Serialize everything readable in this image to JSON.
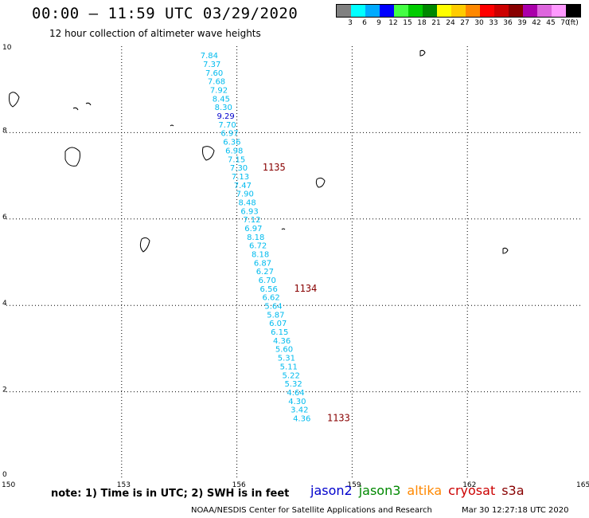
{
  "header": {
    "title": "00:00 – 11:59 UTC 03/29/2020",
    "subtitle": "12 hour collection of altimeter wave heights"
  },
  "legend": {
    "unit": "(ft)",
    "bins": [
      {
        "label": "3",
        "color": "#808080"
      },
      {
        "label": "6",
        "color": "#00ffff"
      },
      {
        "label": "9",
        "color": "#00aaff"
      },
      {
        "label": "12",
        "color": "#0000ff"
      },
      {
        "label": "15",
        "color": "#44ff44"
      },
      {
        "label": "18",
        "color": "#00cc00"
      },
      {
        "label": "21",
        "color": "#008800"
      },
      {
        "label": "24",
        "color": "#ffff00"
      },
      {
        "label": "27",
        "color": "#ffcc00"
      },
      {
        "label": "30",
        "color": "#ff8800"
      },
      {
        "label": "33",
        "color": "#ff0000"
      },
      {
        "label": "36",
        "color": "#cc0000"
      },
      {
        "label": "39",
        "color": "#880000"
      },
      {
        "label": "42",
        "color": "#aa00aa"
      },
      {
        "label": "45",
        "color": "#dd66dd"
      },
      {
        "label": "70",
        "color": "#ff99ff"
      },
      {
        "label": "",
        "color": "#000000"
      }
    ]
  },
  "map": {
    "x_ticks": [
      "150",
      "153",
      "156",
      "159",
      "162",
      "165"
    ],
    "y_ticks": [
      "10",
      "8",
      "6",
      "4",
      "2",
      "0"
    ],
    "x_values": [
      150,
      153,
      156,
      159,
      162,
      165
    ],
    "y_values": [
      10,
      8,
      6,
      4,
      2,
      0
    ]
  },
  "track": {
    "line_color": "#00bbee",
    "dark_color": "#0000cc",
    "points": [
      {
        "lon": 155.05,
        "lat": 9.72,
        "swh": "7.84"
      },
      {
        "lon": 155.12,
        "lat": 9.52,
        "swh": "7.37"
      },
      {
        "lon": 155.18,
        "lat": 9.32,
        "swh": "7.60"
      },
      {
        "lon": 155.24,
        "lat": 9.12,
        "swh": "7.68"
      },
      {
        "lon": 155.3,
        "lat": 8.92,
        "swh": "7.92"
      },
      {
        "lon": 155.36,
        "lat": 8.72,
        "swh": "8.45"
      },
      {
        "lon": 155.42,
        "lat": 8.52,
        "swh": "8.30"
      },
      {
        "lon": 155.48,
        "lat": 8.32,
        "swh": "9.29",
        "dark": true
      },
      {
        "lon": 155.52,
        "lat": 8.12,
        "swh": "7.70"
      },
      {
        "lon": 155.58,
        "lat": 7.92,
        "swh": "6.97"
      },
      {
        "lon": 155.64,
        "lat": 7.72,
        "swh": "6.36"
      },
      {
        "lon": 155.7,
        "lat": 7.52,
        "swh": "6.98"
      },
      {
        "lon": 155.76,
        "lat": 7.32,
        "swh": "7.15"
      },
      {
        "lon": 155.82,
        "lat": 7.12,
        "swh": "7.30"
      },
      {
        "lon": 155.86,
        "lat": 6.92,
        "swh": "7.13"
      },
      {
        "lon": 155.92,
        "lat": 6.72,
        "swh": "7.47"
      },
      {
        "lon": 155.98,
        "lat": 6.52,
        "swh": "7.90"
      },
      {
        "lon": 156.04,
        "lat": 6.32,
        "swh": "8.48"
      },
      {
        "lon": 156.1,
        "lat": 6.12,
        "swh": "6.93"
      },
      {
        "lon": 156.16,
        "lat": 5.92,
        "swh": "7.12"
      },
      {
        "lon": 156.2,
        "lat": 5.72,
        "swh": "6.97"
      },
      {
        "lon": 156.26,
        "lat": 5.52,
        "swh": "8.18"
      },
      {
        "lon": 156.32,
        "lat": 5.32,
        "swh": "6.72"
      },
      {
        "lon": 156.38,
        "lat": 5.12,
        "swh": "8.18"
      },
      {
        "lon": 156.44,
        "lat": 4.92,
        "swh": "6.87"
      },
      {
        "lon": 156.5,
        "lat": 4.72,
        "swh": "6.27"
      },
      {
        "lon": 156.56,
        "lat": 4.52,
        "swh": "6.70"
      },
      {
        "lon": 156.6,
        "lat": 4.32,
        "swh": "6.56"
      },
      {
        "lon": 156.66,
        "lat": 4.12,
        "swh": "6.62"
      },
      {
        "lon": 156.72,
        "lat": 3.92,
        "swh": "5.64"
      },
      {
        "lon": 156.78,
        "lat": 3.72,
        "swh": "5.87"
      },
      {
        "lon": 156.84,
        "lat": 3.52,
        "swh": "6.07"
      },
      {
        "lon": 156.88,
        "lat": 3.32,
        "swh": "6.15"
      },
      {
        "lon": 156.94,
        "lat": 3.12,
        "swh": "4.36"
      },
      {
        "lon": 157.0,
        "lat": 2.92,
        "swh": "5.60"
      },
      {
        "lon": 157.06,
        "lat": 2.72,
        "swh": "5.31"
      },
      {
        "lon": 157.12,
        "lat": 2.52,
        "swh": "5.11"
      },
      {
        "lon": 157.18,
        "lat": 2.32,
        "swh": "5.22"
      },
      {
        "lon": 157.24,
        "lat": 2.12,
        "swh": "5.32"
      },
      {
        "lon": 157.3,
        "lat": 1.92,
        "swh": "4.64"
      },
      {
        "lon": 157.34,
        "lat": 1.72,
        "swh": "4.30"
      },
      {
        "lon": 157.4,
        "lat": 1.52,
        "swh": "3.42"
      },
      {
        "lon": 157.46,
        "lat": 1.32,
        "swh": "4.36"
      }
    ]
  },
  "time_labels": {
    "color": "#880000",
    "items": [
      {
        "lon": 155.88,
        "lat": 7.12,
        "text": "1135"
      },
      {
        "lon": 156.7,
        "lat": 4.32,
        "text": "1134"
      },
      {
        "lon": 157.56,
        "lat": 1.32,
        "text": "1133"
      }
    ]
  },
  "footer": {
    "note": "note:  1) Time is in UTC;  2) SWH is in feet",
    "satellites": [
      {
        "name": "jason2",
        "color": "#0000cc"
      },
      {
        "name": "jason3",
        "color": "#008800"
      },
      {
        "name": "altika",
        "color": "#ff8800"
      },
      {
        "name": "cryosat",
        "color": "#cc0000"
      },
      {
        "name": "s3a",
        "color": "#880000"
      }
    ],
    "credit": "NOAA/NESDIS Center for Satellite Applications and Research",
    "timestamp": "Mar 30 12:27:18 UTC 2020"
  }
}
